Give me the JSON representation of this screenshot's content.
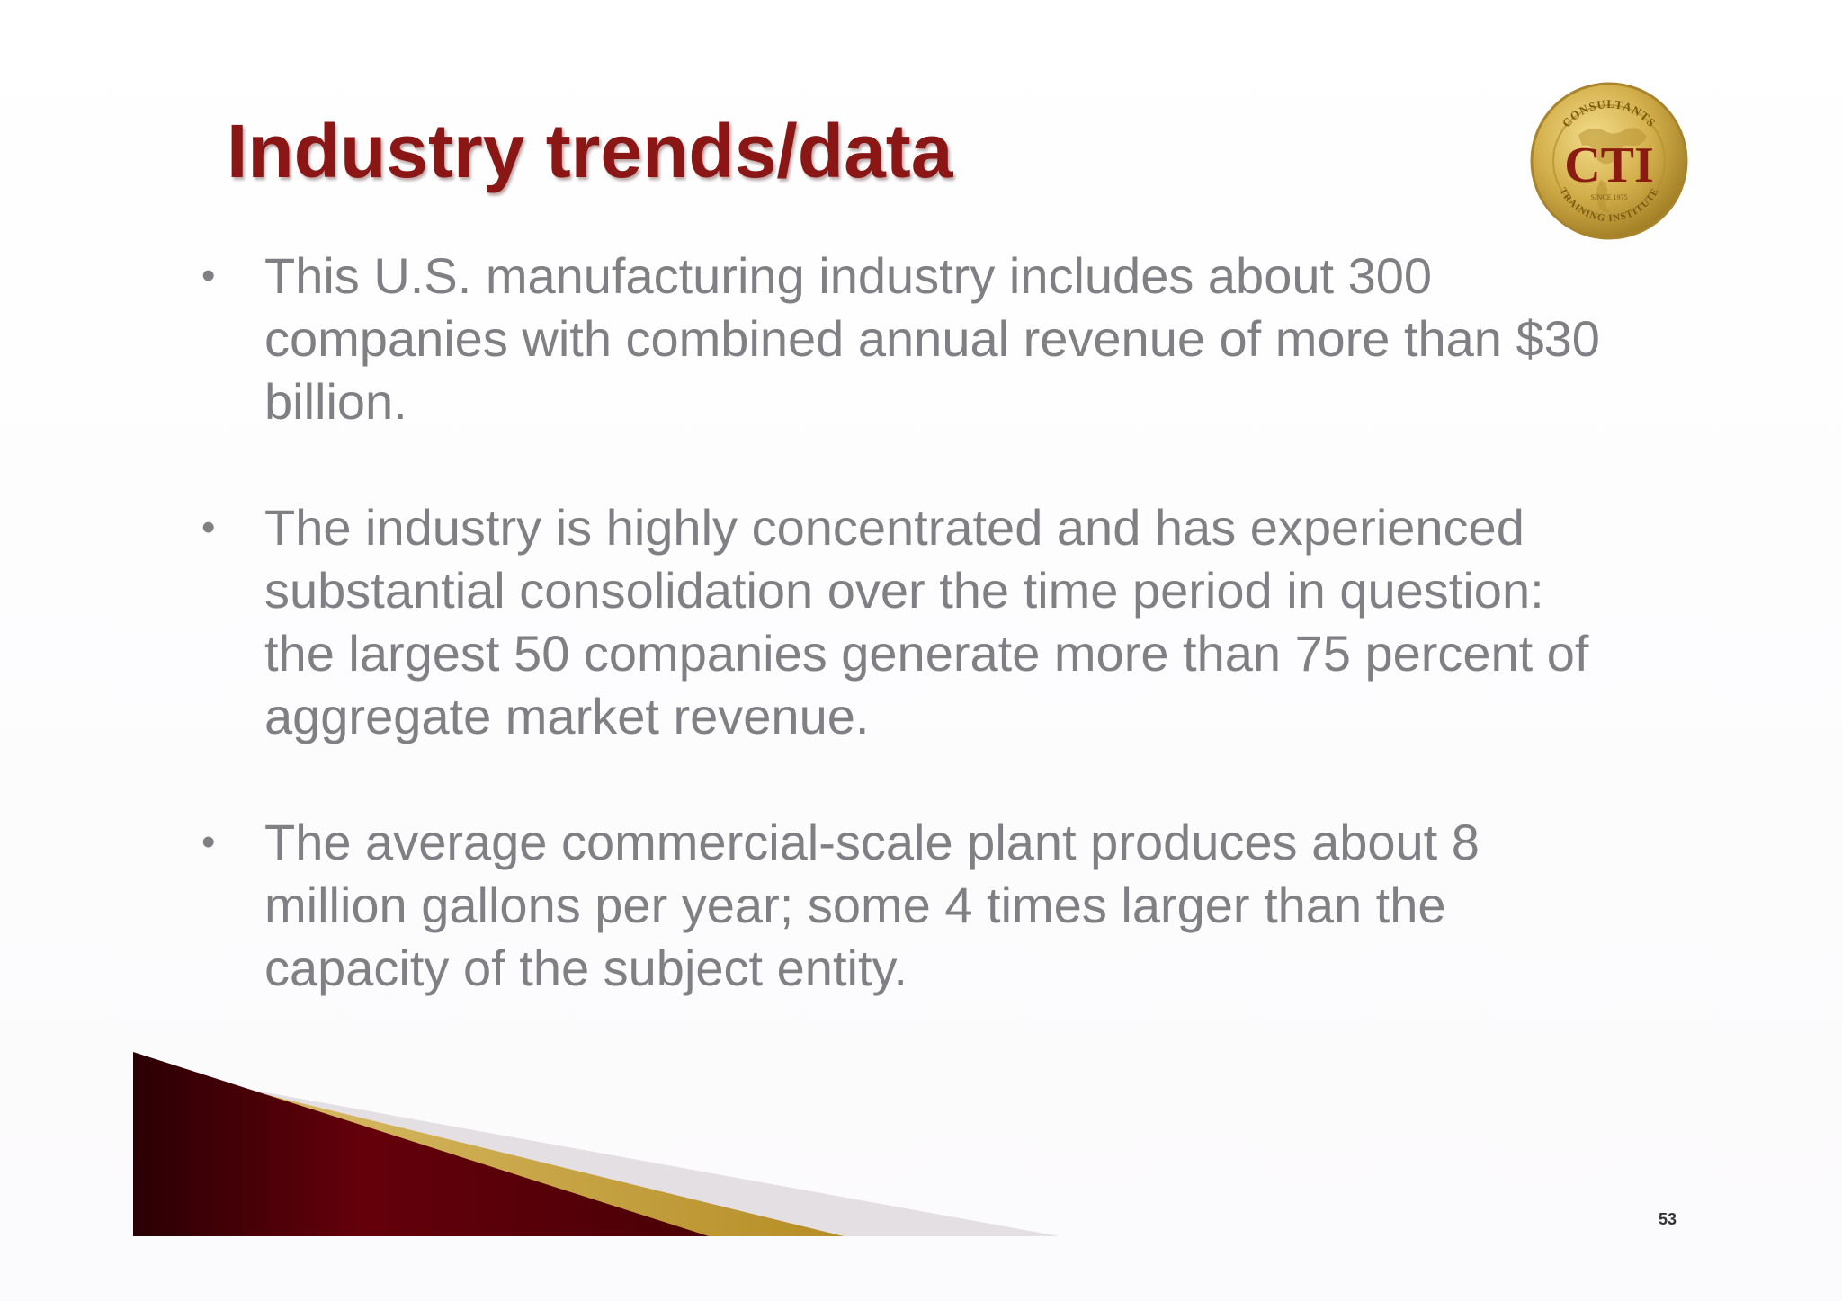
{
  "slide": {
    "title": "Industry trends/data",
    "bullets": [
      {
        "marker": "•",
        "text": "This U.S. manufacturing industry includes about 300 companies with combined annual revenue of more than $30 billion."
      },
      {
        "marker": "•",
        "text": "The industry is highly concentrated and has experienced substantial consolidation over the time period in question: the largest 50 companies generate more than 75 percent of aggregate market revenue."
      },
      {
        "marker": "•",
        "text": "The average commercial-scale plant produces about 8 million gallons per year; some 4 times larger than the capacity of the subject entity."
      }
    ],
    "page_number": "53"
  },
  "logo": {
    "text": "CTI",
    "top_arc": "CONSULTANTS",
    "bottom_arc": "TRAINING INSTITUTE",
    "since": "SINCE 1975",
    "icon": "globe-seal-icon"
  },
  "colors": {
    "title": "#8a1616",
    "body_text": "#7f7f84",
    "gold": "#c9a53a",
    "maroon": "#5a0008"
  }
}
